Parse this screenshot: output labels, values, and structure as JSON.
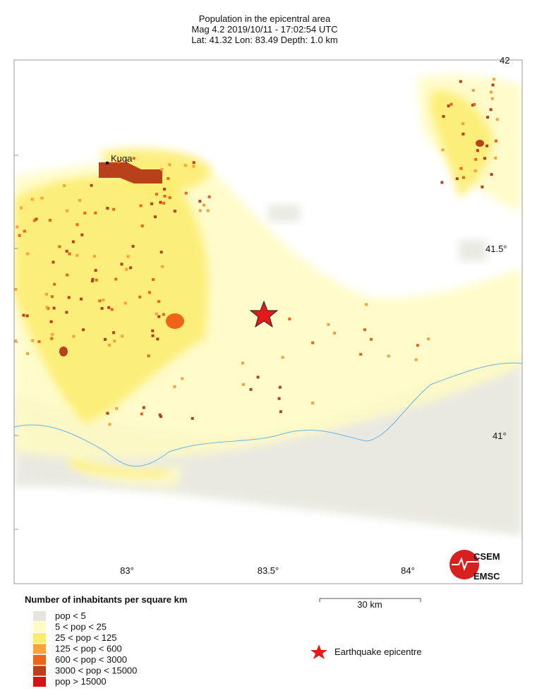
{
  "header": {
    "title": "Population in the epicentral area",
    "event": "Mag 4.2  2019/10/11 - 17:02:54 UTC",
    "location": "Lat: 41.32    Lon:  83.49     Depth:  1.0 km"
  },
  "map": {
    "lat_labels": [
      "42",
      "41.5°",
      "41°"
    ],
    "lon_labels": [
      "83°",
      "83.5°",
      "84°"
    ],
    "city": "Kuqa",
    "scale": "30 km"
  },
  "legend": {
    "title": "Number of inhabitants per square km",
    "items": [
      {
        "label": "pop < 5",
        "color": "#e6e6de"
      },
      {
        "label": "5 < pop < 25",
        "color": "#fffbc2"
      },
      {
        "label": "25 < pop < 125",
        "color": "#fcec6c"
      },
      {
        "label": "125 < pop < 600",
        "color": "#fba03a"
      },
      {
        "label": "600 < pop < 3000",
        "color": "#f06418"
      },
      {
        "label": "3000 < pop < 15000",
        "color": "#b8401a"
      },
      {
        "label": "pop > 15000",
        "color": "#d41414"
      }
    ],
    "epicentre": "Earthquake epicentre"
  },
  "logo": {
    "top": "CSEM",
    "bottom": "EMSC"
  }
}
